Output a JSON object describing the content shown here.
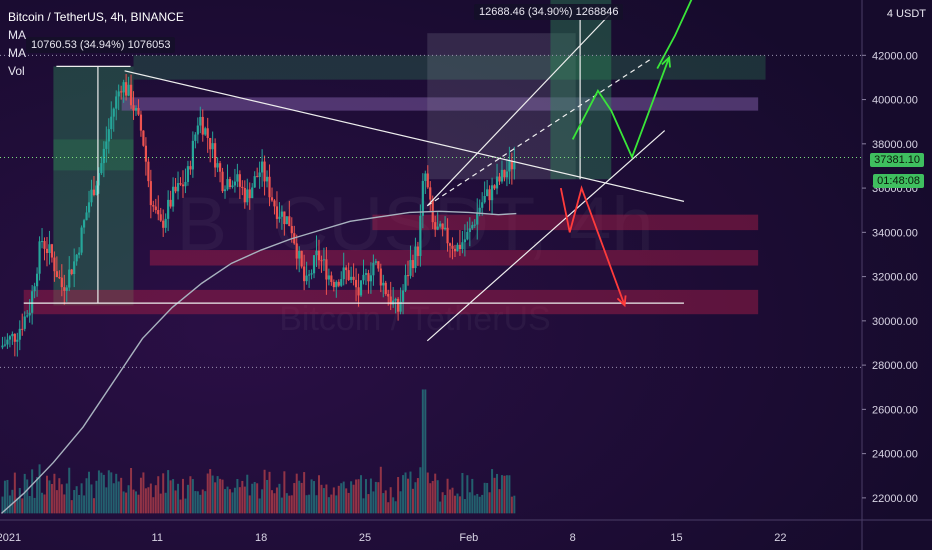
{
  "header": {
    "symbol": "Bitcoin / TetherUS, 4h, BINANCE",
    "indicators": [
      "MA",
      "MA",
      "Vol"
    ]
  },
  "measurements": [
    {
      "text": "10760.53 (34.94%) 1076053"
    },
    {
      "text": "12688.46 (34.90%) 1268846"
    }
  ],
  "price_axis": {
    "unit_label": "4 USDT",
    "current_price": "37381.10",
    "countdown": "01:48:08"
  },
  "watermark": {
    "line1": "BTCUSDT, 4h",
    "line2": "Bitcoin / TetherUS"
  },
  "colors": {
    "background": "#1a0d33",
    "up_candle": "#26a69a",
    "down_candle": "#ef5350",
    "ma_line": "#a8b2bf",
    "green_arrow": "#39e639",
    "red_arrow": "#ff3b3b",
    "channel": "#ffffff",
    "zone_red": "#b0204a",
    "zone_purple": "#7a5aa0",
    "zone_green": "#2e8b57"
  },
  "chart_data": {
    "type": "candlestick",
    "y_ticks": [
      22000,
      24000,
      26000,
      28000,
      30000,
      32000,
      34000,
      36000,
      38000,
      40000,
      42000
    ],
    "ylim": [
      21000,
      44500
    ],
    "x_ticks": [
      {
        "label": "2021",
        "day": 1
      },
      {
        "label": "11",
        "day": 11
      },
      {
        "label": "18",
        "day": 18
      },
      {
        "label": "25",
        "day": 25
      },
      {
        "label": "Feb",
        "day": 32
      },
      {
        "label": "8",
        "day": 39
      },
      {
        "label": "15",
        "day": 46
      },
      {
        "label": "22",
        "day": 53
      }
    ],
    "xlim_days": [
      0.4,
      58.5
    ],
    "dotted_price_lines": [
      42000,
      37381.1,
      27900
    ],
    "price_waypoints": [
      [
        0.4,
        28800
      ],
      [
        1.5,
        29400
      ],
      [
        2.4,
        30600
      ],
      [
        3.2,
        33700
      ],
      [
        3.8,
        33000
      ],
      [
        4.6,
        31500
      ],
      [
        5.5,
        32800
      ],
      [
        6.4,
        35400
      ],
      [
        7.2,
        37000
      ],
      [
        8.0,
        39500
      ],
      [
        8.6,
        40800
      ],
      [
        9.2,
        40100
      ],
      [
        10.0,
        38400
      ],
      [
        10.6,
        35400
      ],
      [
        11.2,
        34200
      ],
      [
        12.1,
        35700
      ],
      [
        13.0,
        36400
      ],
      [
        13.8,
        39300
      ],
      [
        14.6,
        38000
      ],
      [
        15.4,
        36300
      ],
      [
        16.2,
        36500
      ],
      [
        17.0,
        35600
      ],
      [
        18.0,
        36900
      ],
      [
        19.0,
        35100
      ],
      [
        20.0,
        34400
      ],
      [
        21.0,
        31500
      ],
      [
        21.8,
        33000
      ],
      [
        22.8,
        31800
      ],
      [
        23.8,
        32200
      ],
      [
        24.6,
        31200
      ],
      [
        25.6,
        32700
      ],
      [
        26.4,
        31400
      ],
      [
        27.2,
        30400
      ],
      [
        28.0,
        32500
      ],
      [
        28.6,
        33300
      ],
      [
        29.0,
        36900
      ],
      [
        29.6,
        34200
      ],
      [
        30.4,
        33800
      ],
      [
        31.2,
        33300
      ],
      [
        32.0,
        33900
      ],
      [
        32.8,
        35300
      ],
      [
        33.8,
        36100
      ],
      [
        34.6,
        36800
      ],
      [
        35.2,
        37381.1
      ]
    ],
    "ma_points": [
      [
        0.5,
        21300
      ],
      [
        2,
        22200
      ],
      [
        4,
        23600
      ],
      [
        6,
        25200
      ],
      [
        8,
        27200
      ],
      [
        10,
        29200
      ],
      [
        12,
        30600
      ],
      [
        14,
        31700
      ],
      [
        16,
        32600
      ],
      [
        18,
        33200
      ],
      [
        20,
        33700
      ],
      [
        22,
        34100
      ],
      [
        24,
        34500
      ],
      [
        26,
        34700
      ],
      [
        28,
        34900
      ],
      [
        30,
        34950
      ],
      [
        32,
        34900
      ],
      [
        34,
        34800
      ],
      [
        35.2,
        34850
      ]
    ],
    "volume": {
      "base_price": 21300,
      "max_price": 26900
    },
    "zones": [
      {
        "kind": "green",
        "day": [
          4,
          9.4
        ],
        "price": [
          30700,
          41500
        ]
      },
      {
        "kind": "purple",
        "day": [
          8.6,
          51.5
        ],
        "price": [
          39500,
          40100
        ]
      },
      {
        "kind": "green_dim",
        "day": [
          9.4,
          52
        ],
        "price": [
          40900,
          42000
        ]
      },
      {
        "kind": "green_dim",
        "day": [
          4,
          9.4
        ],
        "price": [
          36800,
          38200
        ]
      },
      {
        "kind": "red",
        "day": [
          25.5,
          51.5
        ],
        "price": [
          34100,
          34800
        ]
      },
      {
        "kind": "red",
        "day": [
          10.5,
          51.5
        ],
        "price": [
          32500,
          33200
        ]
      },
      {
        "kind": "red",
        "day": [
          2,
          51.5
        ],
        "price": [
          30300,
          31400
        ]
      },
      {
        "kind": "grey",
        "day": [
          29.2,
          39.2
        ],
        "price": [
          36400,
          43000
        ]
      },
      {
        "kind": "green",
        "day": [
          37.5,
          41.6
        ],
        "price": [
          36400,
          44600
        ]
      }
    ],
    "lines": [
      {
        "kind": "white",
        "points": [
          [
            4.2,
            41500
          ],
          [
            9.2,
            41500
          ]
        ]
      },
      {
        "kind": "white",
        "points": [
          [
            2.0,
            30800
          ],
          [
            46.5,
            30800
          ]
        ]
      },
      {
        "kind": "white",
        "points": [
          [
            8.8,
            41300
          ],
          [
            46.5,
            35400
          ]
        ]
      },
      {
        "kind": "white",
        "points": [
          [
            29.2,
            29100
          ],
          [
            45.2,
            38600
          ]
        ]
      },
      {
        "kind": "white",
        "points": [
          [
            29.2,
            35200
          ],
          [
            42.0,
            44200
          ]
        ]
      },
      {
        "kind": "white_dashed",
        "points": [
          [
            29.2,
            35200
          ],
          [
            44.2,
            41800
          ]
        ]
      },
      {
        "kind": "white",
        "points": [
          [
            7.0,
            30800
          ],
          [
            7.0,
            41500
          ]
        ]
      },
      {
        "kind": "white",
        "points": [
          [
            39.5,
            36400
          ],
          [
            39.5,
            43600
          ]
        ]
      }
    ],
    "green_arrow": [
      [
        39.0,
        38200
      ],
      [
        40.7,
        40400
      ],
      [
        41.6,
        39500
      ],
      [
        43.0,
        37400
      ],
      [
        45.5,
        41900
      ]
    ],
    "green_arrow_top": [
      [
        44.7,
        41400
      ],
      [
        45.9,
        42900
      ],
      [
        47.2,
        44800
      ]
    ],
    "red_arrow": [
      [
        38.2,
        36000
      ],
      [
        38.8,
        34000
      ],
      [
        39.6,
        36000
      ],
      [
        42.5,
        30700
      ]
    ]
  }
}
